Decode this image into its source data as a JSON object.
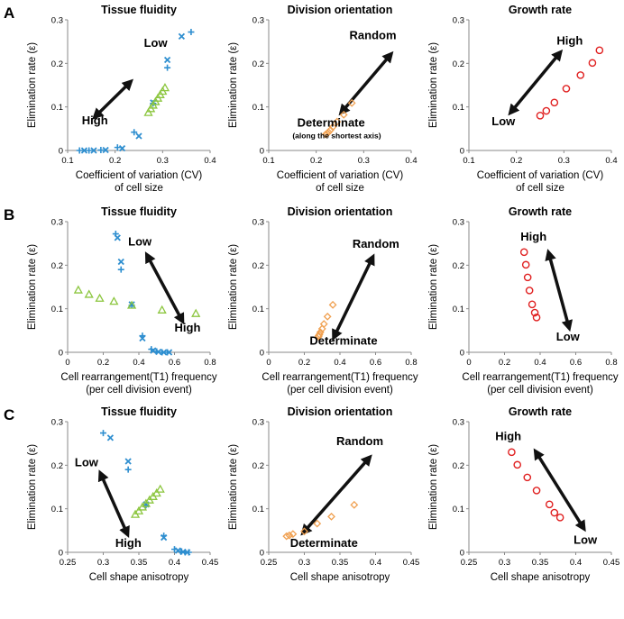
{
  "colors": {
    "blue": "#2f8fd0",
    "green": "#8cc63f",
    "orange": "#f0a050",
    "red": "#e02020",
    "arrow": "#111111"
  },
  "panel_labels": [
    "A",
    "B",
    "C"
  ],
  "column_titles": [
    "Tissue fluidity",
    "Division orientation",
    "Growth rate"
  ],
  "shared_ylabel": "Elimination rate (ε)",
  "rows": [
    {
      "label": "A",
      "xlabel_lines": [
        "Coefficient of variation (CV)",
        "of cell size"
      ],
      "xlim": [
        0.1,
        0.4
      ],
      "xticks": [
        "0.1",
        "0.2",
        "0.3",
        "0.4"
      ],
      "ylim": [
        0,
        0.3
      ],
      "yticks": [
        "0",
        "0.1",
        "0.2",
        "0.3"
      ]
    },
    {
      "label": "B",
      "xlabel_lines": [
        "Cell rearrangement(T1) frequency",
        "(per cell division event)"
      ],
      "xlim": [
        0,
        0.8
      ],
      "xticks": [
        "0",
        "0.2",
        "0.4",
        "0.6",
        "0.8"
      ],
      "ylim": [
        0,
        0.3
      ],
      "yticks": [
        "0",
        "0.1",
        "0.2",
        "0.3"
      ]
    },
    {
      "label": "C",
      "xlabel_lines": [
        "Cell shape anisotropy"
      ],
      "xlim": [
        0.25,
        0.45
      ],
      "xticks": [
        "0.25",
        "0.3",
        "0.35",
        "0.4",
        "0.45"
      ],
      "ylim": [
        0,
        0.3
      ],
      "yticks": [
        "0",
        "0.1",
        "0.2",
        "0.3"
      ]
    }
  ],
  "chart_data": [
    {
      "type": "scatter",
      "row": "A",
      "title": "Tissue fluidity",
      "xlabel": "Coefficient of variation (CV) of cell size",
      "ylabel": "Elimination rate (ε)",
      "xlim": [
        0.1,
        0.4
      ],
      "ylim": [
        0,
        0.3
      ],
      "series": [
        {
          "marker": "plus",
          "color": "blue",
          "points": [
            [
              0.36,
              0.272
            ],
            [
              0.31,
              0.19
            ],
            [
              0.28,
              0.108
            ],
            [
              0.24,
              0.042
            ],
            [
              0.205,
              0.007
            ],
            [
              0.17,
              0.001
            ],
            [
              0.145,
              0.0
            ],
            [
              0.125,
              0.0
            ]
          ]
        },
        {
          "marker": "x",
          "color": "blue",
          "points": [
            [
              0.34,
              0.262
            ],
            [
              0.31,
              0.208
            ],
            [
              0.28,
              0.11
            ],
            [
              0.25,
              0.033
            ],
            [
              0.215,
              0.005
            ],
            [
              0.18,
              0.001
            ],
            [
              0.155,
              0.0
            ],
            [
              0.135,
              0.0
            ]
          ]
        },
        {
          "marker": "triangle",
          "color": "green",
          "points": [
            [
              0.27,
              0.087
            ],
            [
              0.275,
              0.096
            ],
            [
              0.28,
              0.104
            ],
            [
              0.285,
              0.112
            ],
            [
              0.29,
              0.12
            ],
            [
              0.295,
              0.128
            ],
            [
              0.3,
              0.136
            ],
            [
              0.305,
              0.144
            ]
          ]
        }
      ],
      "annotations": [
        {
          "text": "Low",
          "x": 0.31,
          "y": 0.238,
          "anchor": "end",
          "size": "big"
        },
        {
          "text": "High",
          "x": 0.13,
          "y": 0.06,
          "anchor": "start",
          "size": "big"
        }
      ],
      "arrows": [
        [
          0.23,
          0.155,
          0.16,
          0.08
        ]
      ]
    },
    {
      "type": "scatter",
      "row": "A",
      "title": "Division orientation",
      "xlabel": "Coefficient of variation (CV) of cell size",
      "ylabel": "Elimination rate (ε)",
      "xlim": [
        0.1,
        0.4
      ],
      "ylim": [
        0,
        0.3
      ],
      "series": [
        {
          "marker": "diamond",
          "color": "orange",
          "points": [
            [
              0.275,
              0.109
            ],
            [
              0.258,
              0.082
            ],
            [
              0.244,
              0.066
            ],
            [
              0.235,
              0.054
            ],
            [
              0.23,
              0.047
            ],
            [
              0.226,
              0.042
            ],
            [
              0.223,
              0.039
            ],
            [
              0.22,
              0.037
            ]
          ]
        }
      ],
      "annotations": [
        {
          "text": "Random",
          "x": 0.27,
          "y": 0.256,
          "anchor": "start",
          "size": "big"
        },
        {
          "text": "Determinate",
          "x": 0.16,
          "y": 0.055,
          "anchor": "start",
          "size": "big"
        },
        {
          "text": "(along the shortest axis)",
          "x": 0.15,
          "y": 0.028,
          "anchor": "start",
          "size": "small"
        }
      ],
      "arrows": [
        [
          0.355,
          0.218,
          0.255,
          0.09
        ]
      ]
    },
    {
      "type": "scatter",
      "row": "A",
      "title": "Growth rate",
      "xlabel": "Coefficient of variation (CV) of cell size",
      "ylabel": "Elimination rate (ε)",
      "xlim": [
        0.1,
        0.4
      ],
      "ylim": [
        0,
        0.3
      ],
      "series": [
        {
          "marker": "circle",
          "color": "red",
          "points": [
            [
              0.25,
              0.08
            ],
            [
              0.263,
              0.091
            ],
            [
              0.28,
              0.11
            ],
            [
              0.305,
              0.142
            ],
            [
              0.335,
              0.173
            ],
            [
              0.36,
              0.201
            ],
            [
              0.375,
              0.23
            ]
          ]
        }
      ],
      "annotations": [
        {
          "text": "High",
          "x": 0.285,
          "y": 0.243,
          "anchor": "start",
          "size": "big"
        },
        {
          "text": "Low",
          "x": 0.148,
          "y": 0.058,
          "anchor": "start",
          "size": "big"
        }
      ],
      "arrows": [
        [
          0.29,
          0.222,
          0.19,
          0.09
        ]
      ]
    },
    {
      "type": "scatter",
      "row": "B",
      "title": "Tissue fluidity",
      "xlabel": "Cell rearrangement(T1) frequency (per cell division event)",
      "ylabel": "Elimination rate (ε)",
      "xlim": [
        0,
        0.8
      ],
      "ylim": [
        0,
        0.3
      ],
      "series": [
        {
          "marker": "plus",
          "color": "blue",
          "points": [
            [
              0.27,
              0.272
            ],
            [
              0.3,
              0.19
            ],
            [
              0.36,
              0.108
            ],
            [
              0.42,
              0.038
            ],
            [
              0.47,
              0.007
            ],
            [
              0.5,
              0.002
            ],
            [
              0.53,
              0.0
            ],
            [
              0.56,
              0.0
            ]
          ]
        },
        {
          "marker": "x",
          "color": "blue",
          "points": [
            [
              0.28,
              0.263
            ],
            [
              0.3,
              0.208
            ],
            [
              0.36,
              0.11
            ],
            [
              0.42,
              0.032
            ],
            [
              0.48,
              0.004
            ],
            [
              0.51,
              0.001
            ],
            [
              0.54,
              0.0
            ],
            [
              0.57,
              0.0
            ]
          ]
        },
        {
          "marker": "triangle",
          "color": "green",
          "points": [
            [
              0.06,
              0.143
            ],
            [
              0.12,
              0.133
            ],
            [
              0.18,
              0.124
            ],
            [
              0.26,
              0.117
            ],
            [
              0.36,
              0.108
            ],
            [
              0.53,
              0.097
            ],
            [
              0.72,
              0.089
            ]
          ]
        }
      ],
      "annotations": [
        {
          "text": "Low",
          "x": 0.34,
          "y": 0.245,
          "anchor": "start",
          "size": "big"
        },
        {
          "text": "High",
          "x": 0.6,
          "y": 0.048,
          "anchor": "start",
          "size": "big"
        }
      ],
      "arrows": [
        [
          0.45,
          0.22,
          0.64,
          0.075
        ]
      ]
    },
    {
      "type": "scatter",
      "row": "B",
      "title": "Division orientation",
      "xlabel": "Cell rearrangement(T1) frequency (per cell division event)",
      "ylabel": "Elimination rate (ε)",
      "xlim": [
        0,
        0.8
      ],
      "ylim": [
        0,
        0.3
      ],
      "series": [
        {
          "marker": "diamond",
          "color": "orange",
          "points": [
            [
              0.36,
              0.109
            ],
            [
              0.33,
              0.082
            ],
            [
              0.31,
              0.065
            ],
            [
              0.3,
              0.054
            ],
            [
              0.29,
              0.046
            ],
            [
              0.285,
              0.041
            ],
            [
              0.28,
              0.038
            ],
            [
              0.28,
              0.036
            ]
          ]
        }
      ],
      "annotations": [
        {
          "text": "Random",
          "x": 0.47,
          "y": 0.24,
          "anchor": "start",
          "size": "big"
        },
        {
          "text": "Determinate",
          "x": 0.23,
          "y": 0.018,
          "anchor": "start",
          "size": "big"
        }
      ],
      "arrows": [
        [
          0.58,
          0.215,
          0.37,
          0.038
        ]
      ]
    },
    {
      "type": "scatter",
      "row": "B",
      "title": "Growth rate",
      "xlabel": "Cell rearrangement(T1) frequency (per cell division event)",
      "ylabel": "Elimination rate (ε)",
      "xlim": [
        0,
        0.8
      ],
      "ylim": [
        0,
        0.3
      ],
      "series": [
        {
          "marker": "circle",
          "color": "red",
          "points": [
            [
              0.31,
              0.23
            ],
            [
              0.32,
              0.201
            ],
            [
              0.33,
              0.172
            ],
            [
              0.34,
              0.142
            ],
            [
              0.355,
              0.11
            ],
            [
              0.37,
              0.091
            ],
            [
              0.38,
              0.08
            ]
          ]
        }
      ],
      "annotations": [
        {
          "text": "High",
          "x": 0.29,
          "y": 0.257,
          "anchor": "start",
          "size": "big"
        },
        {
          "text": "Low",
          "x": 0.49,
          "y": 0.027,
          "anchor": "start",
          "size": "big"
        }
      ],
      "arrows": [
        [
          0.45,
          0.225,
          0.56,
          0.06
        ]
      ]
    },
    {
      "type": "scatter",
      "row": "C",
      "title": "Tissue fluidity",
      "xlabel": "Cell shape anisotropy",
      "ylabel": "Elimination rate (ε)",
      "xlim": [
        0.25,
        0.45
      ],
      "ylim": [
        0,
        0.3
      ],
      "series": [
        {
          "marker": "plus",
          "color": "blue",
          "points": [
            [
              0.3,
              0.274
            ],
            [
              0.335,
              0.19
            ],
            [
              0.36,
              0.108
            ],
            [
              0.385,
              0.038
            ],
            [
              0.4,
              0.007
            ],
            [
              0.41,
              0.002
            ],
            [
              0.415,
              0.0
            ],
            [
              0.42,
              0.0
            ]
          ]
        },
        {
          "marker": "x",
          "color": "blue",
          "points": [
            [
              0.31,
              0.263
            ],
            [
              0.335,
              0.209
            ],
            [
              0.36,
              0.11
            ],
            [
              0.385,
              0.034
            ],
            [
              0.405,
              0.004
            ],
            [
              0.412,
              0.001
            ],
            [
              0.418,
              0.0
            ]
          ]
        },
        {
          "marker": "triangle",
          "color": "green",
          "points": [
            [
              0.345,
              0.087
            ],
            [
              0.35,
              0.095
            ],
            [
              0.355,
              0.104
            ],
            [
              0.36,
              0.112
            ],
            [
              0.365,
              0.12
            ],
            [
              0.37,
              0.128
            ],
            [
              0.375,
              0.136
            ],
            [
              0.38,
              0.145
            ]
          ]
        }
      ],
      "annotations": [
        {
          "text": "Low",
          "x": 0.26,
          "y": 0.198,
          "anchor": "start",
          "size": "big"
        },
        {
          "text": "High",
          "x": 0.317,
          "y": 0.012,
          "anchor": "start",
          "size": "big"
        }
      ],
      "arrows": [
        [
          0.297,
          0.178,
          0.333,
          0.045
        ]
      ]
    },
    {
      "type": "scatter",
      "row": "C",
      "title": "Division orientation",
      "xlabel": "Cell shape anisotropy",
      "ylabel": "Elimination rate (ε)",
      "xlim": [
        0.25,
        0.45
      ],
      "ylim": [
        0,
        0.3
      ],
      "series": [
        {
          "marker": "diamond",
          "color": "orange",
          "points": [
            [
              0.37,
              0.109
            ],
            [
              0.338,
              0.082
            ],
            [
              0.318,
              0.066
            ],
            [
              0.3,
              0.048
            ],
            [
              0.284,
              0.042
            ],
            [
              0.279,
              0.039
            ],
            [
              0.275,
              0.037
            ]
          ]
        }
      ],
      "annotations": [
        {
          "text": "Random",
          "x": 0.345,
          "y": 0.246,
          "anchor": "start",
          "size": "big"
        },
        {
          "text": "Determinate",
          "x": 0.28,
          "y": 0.012,
          "anchor": "start",
          "size": "big"
        }
      ],
      "arrows": [
        [
          0.39,
          0.215,
          0.3,
          0.048
        ]
      ]
    },
    {
      "type": "scatter",
      "row": "C",
      "title": "Growth rate",
      "xlabel": "Cell shape anisotropy",
      "ylabel": "Elimination rate (ε)",
      "xlim": [
        0.25,
        0.45
      ],
      "ylim": [
        0,
        0.3
      ],
      "series": [
        {
          "marker": "circle",
          "color": "red",
          "points": [
            [
              0.31,
              0.23
            ],
            [
              0.318,
              0.201
            ],
            [
              0.332,
              0.172
            ],
            [
              0.345,
              0.142
            ],
            [
              0.363,
              0.11
            ],
            [
              0.37,
              0.091
            ],
            [
              0.378,
              0.08
            ]
          ]
        }
      ],
      "annotations": [
        {
          "text": "High",
          "x": 0.287,
          "y": 0.258,
          "anchor": "start",
          "size": "big"
        },
        {
          "text": "Low",
          "x": 0.397,
          "y": 0.02,
          "anchor": "start",
          "size": "big"
        }
      ],
      "arrows": [
        [
          0.345,
          0.228,
          0.41,
          0.058
        ]
      ]
    }
  ]
}
